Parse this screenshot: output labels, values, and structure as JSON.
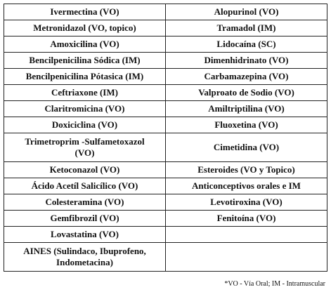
{
  "table": {
    "rows": [
      [
        "Ivermectina (VO)",
        "Alopurinol (VO)"
      ],
      [
        "Metronidazol (VO, topico)",
        "Tramadol (IM)"
      ],
      [
        "Amoxicilina (VO)",
        "Lidocaína (SC)"
      ],
      [
        "Bencilpenicilina Sódica (IM)",
        "Dimenhidrinato (VO)"
      ],
      [
        "Bencilpenicilina Pótasica (IM)",
        "Carbamazepina (VO)"
      ],
      [
        "Ceftriaxone (IM)",
        "Valproato de Sodio (VO)"
      ],
      [
        "Claritromicina (VO)",
        "Amiltriptilina (VO)"
      ],
      [
        "Doxiciclina (VO)",
        "Fluoxetina (VO)"
      ],
      [
        "Trimetroprim -Sulfametoxazol (VO)",
        "Cimetidina (VO)"
      ],
      [
        "Ketoconazol (VO)",
        "Esteroides (VO y Topico)"
      ],
      [
        "Ácido Acetíl Salicílico (VO)",
        "Anticonceptivos orales e IM"
      ],
      [
        "Colesteramina (VO)",
        "Levotiroxina (VO)"
      ],
      [
        "Gemfibrozil (VO)",
        "Fenitoína (VO)"
      ],
      [
        "Lovastatina (VO)"
      ],
      [
        "AINES (Sulindaco, Ibuprofeno, Indometacina)"
      ]
    ]
  },
  "footnote": "*VO - Vía Oral; IM - Intramuscular"
}
